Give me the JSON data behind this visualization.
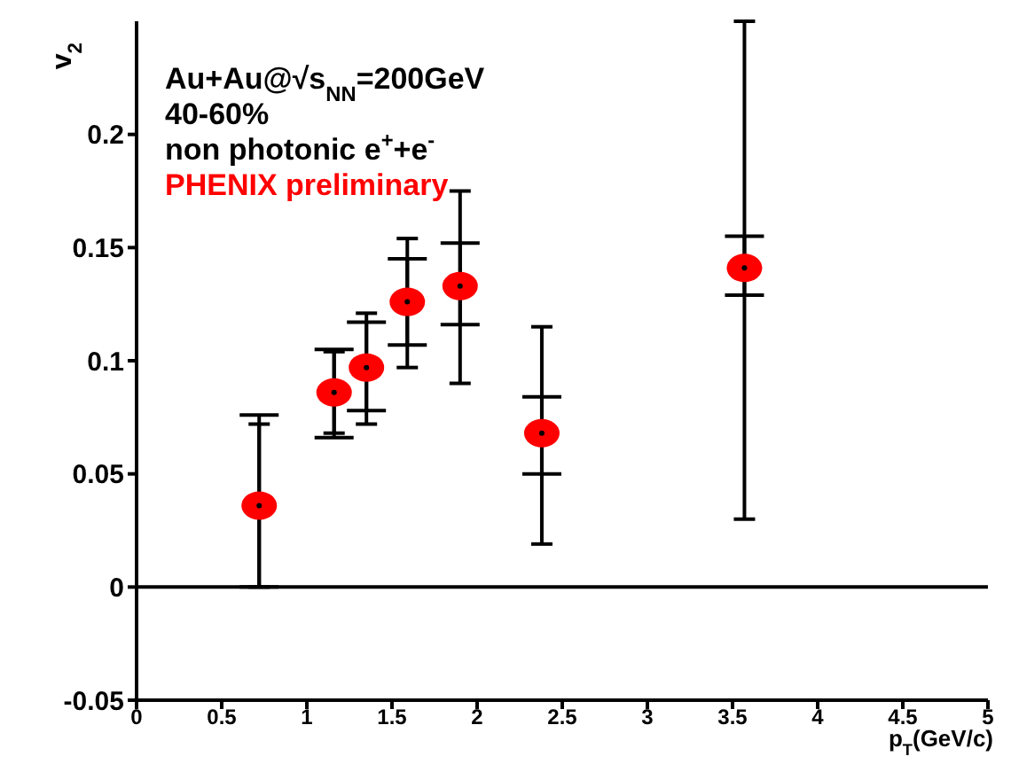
{
  "chart_data": {
    "type": "scatter",
    "xlabel": "p$_{T}$(GeV/c)",
    "ylabel": "v$_{2}$",
    "annotations": [
      "Au+Au@√s$_{NN}$=200GeV",
      "40-60%",
      "non photonic e$^{+}$+e$^{-}$",
      "PHENIX preliminary"
    ],
    "x": [
      0.72,
      1.16,
      1.35,
      1.59,
      1.9,
      2.38,
      3.57
    ],
    "series": [
      {
        "color": "#ff0000",
        "marker": "circle",
        "values": [
          0.036,
          0.086,
          0.097,
          0.126,
          0.133,
          0.068,
          0.141
        ],
        "errors": [
          [
            0.0,
            0.072
          ],
          [
            0.068,
            0.104
          ],
          [
            0.072,
            0.121
          ],
          [
            0.097,
            0.154
          ],
          [
            0.09,
            0.175
          ],
          [
            0.019,
            0.115
          ],
          [
            0.03,
            0.25
          ]
        ]
      },
      {
        "color": "#000000",
        "marker": "dot",
        "values": [
          0.036,
          0.086,
          0.097,
          0.126,
          0.133,
          0.068,
          0.141
        ],
        "errors": [
          [
            0.0,
            0.076
          ],
          [
            0.066,
            0.105
          ],
          [
            0.078,
            0.117
          ],
          [
            0.107,
            0.145
          ],
          [
            0.116,
            0.152
          ],
          [
            0.05,
            0.084
          ],
          [
            0.129,
            0.155
          ]
        ]
      }
    ],
    "xlim": [
      0,
      5
    ],
    "xticks": [
      0,
      0.5,
      1,
      1.5,
      2,
      2.5,
      3,
      3.5,
      4,
      4.5,
      5
    ],
    "ylim": [
      -0.05,
      0.25
    ],
    "yticks": [
      -0.05,
      0,
      0.05,
      0.1,
      0.15,
      0.2
    ],
    "ref_lines": [
      {
        "axis": "y",
        "value": 0,
        "color": "#000000"
      }
    ],
    "grid": false,
    "legend": false
  }
}
